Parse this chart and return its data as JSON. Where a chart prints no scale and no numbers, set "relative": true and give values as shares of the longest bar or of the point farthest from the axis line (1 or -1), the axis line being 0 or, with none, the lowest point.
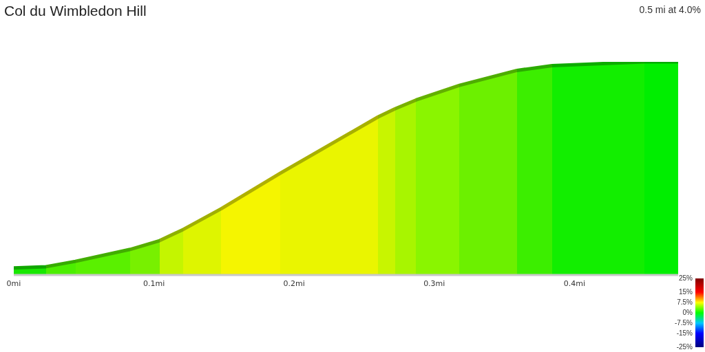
{
  "chart_data": {
    "type": "area",
    "title": "Col du Wimbledon Hill",
    "annotations": [
      "0.5 mi at 4.0%"
    ],
    "x": [
      0,
      0.023,
      0.044,
      0.083,
      0.104,
      0.121,
      0.148,
      0.19,
      0.26,
      0.272,
      0.287,
      0.318,
      0.359,
      0.384,
      0.45,
      0.474
    ],
    "values": [
      0.033,
      0.039,
      0.064,
      0.12,
      0.161,
      0.214,
      0.311,
      0.477,
      0.742,
      0.78,
      0.821,
      0.89,
      0.96,
      0.982,
      1,
      1
    ],
    "colors": [
      null,
      "#18e800",
      "#4cee00",
      "#5af000",
      "#78f000",
      "#c4f500",
      "#def500",
      "#f5f500",
      "#eaf500",
      "#c8f500",
      "#a8f500",
      "#8af500",
      "#6cf000",
      "#3cee00",
      "#12ee00",
      "#00ee00"
    ],
    "relative": true,
    "clim": [
      -25,
      25
    ],
    "cticks": [
      {
        "value": 25,
        "label": "25%"
      },
      {
        "value": 15,
        "label": "15%"
      },
      {
        "value": 7.5,
        "label": "7.5%"
      },
      {
        "value": 0,
        "label": "0%"
      },
      {
        "value": -7.5,
        "label": "-7.5%"
      },
      {
        "value": -15,
        "label": "-15%"
      },
      {
        "value": -25,
        "label": "-25%"
      }
    ],
    "xlim": [
      0,
      0.474
    ],
    "xticks": [
      {
        "value": 0,
        "label": "0mi"
      },
      {
        "value": 0.1,
        "label": "0.1mi"
      },
      {
        "value": 0.2,
        "label": "0.2mi"
      },
      {
        "value": 0.3,
        "label": "0.3mi"
      },
      {
        "value": 0.4,
        "label": "0.4mi"
      }
    ],
    "tick_labels": "x"
  }
}
